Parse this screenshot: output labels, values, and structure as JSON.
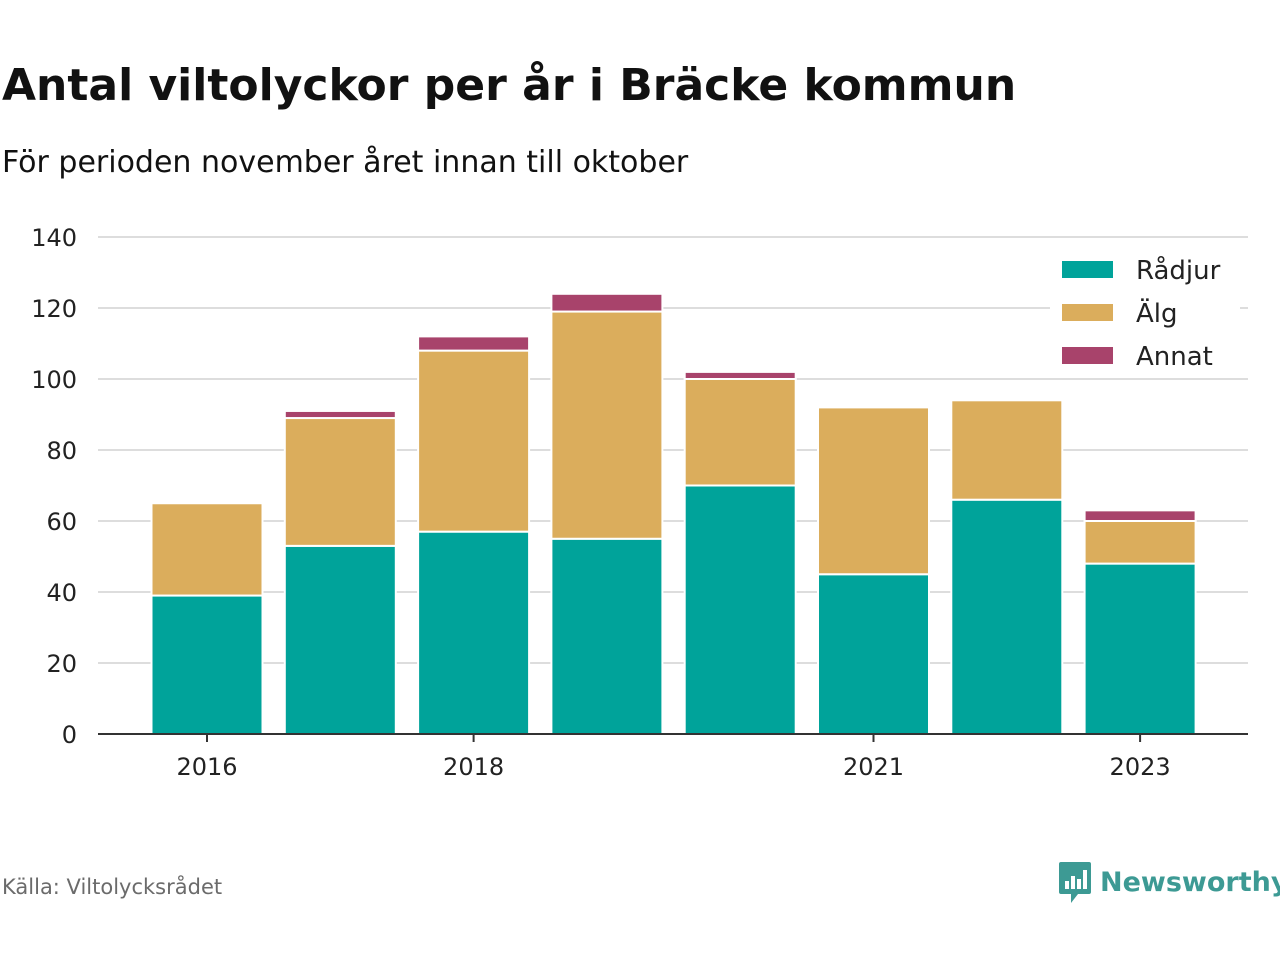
{
  "title": "Antal viltolyckor per år i Bräcke kommun",
  "subtitle": "För perioden november året innan till oktober",
  "source": "Källa: Viltolycksrådet",
  "brand": {
    "name": "Newsworthy",
    "icon": "newsworthy-logo-icon",
    "color": "#3d9a94"
  },
  "chart_data": {
    "type": "bar",
    "stacked": true,
    "x": [
      2016,
      2017,
      2018,
      2019,
      2020,
      2021,
      2022,
      2023
    ],
    "x_tick_labels": [
      {
        "x": 2016,
        "label": "2016"
      },
      {
        "x": 2018,
        "label": "2018"
      },
      {
        "x": 2021,
        "label": "2021"
      },
      {
        "x": 2023,
        "label": "2023"
      }
    ],
    "series": [
      {
        "name": "Rådjur",
        "color": "#00a39a",
        "values": [
          39,
          53,
          57,
          55,
          70,
          45,
          66,
          48
        ]
      },
      {
        "name": "Älg",
        "color": "#dbad5c",
        "values": [
          26,
          36,
          51,
          64,
          30,
          47,
          28,
          12
        ]
      },
      {
        "name": "Annat",
        "color": "#a8436b",
        "values": [
          0,
          2,
          4,
          5,
          2,
          0,
          0,
          3
        ]
      }
    ],
    "ylim": [
      0,
      140
    ],
    "y_ticks": [
      0,
      20,
      40,
      60,
      80,
      100,
      120,
      140
    ],
    "xlabel": "",
    "ylabel": "",
    "grid": true,
    "legend_position": "top-right"
  }
}
